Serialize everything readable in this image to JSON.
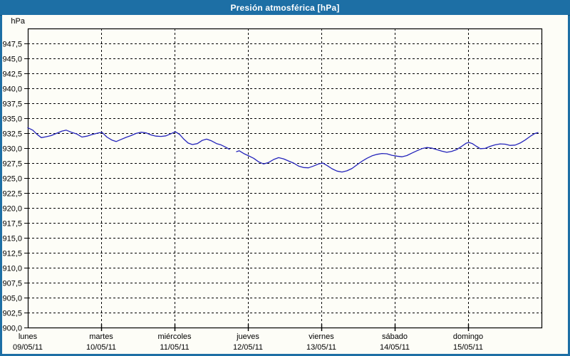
{
  "window": {
    "title": "Presión atmosférica [hPa]"
  },
  "colors": {
    "titlebar": "#1d6fa5",
    "frame_border": "#1d6fa5",
    "plot_background": "#fdfdf7",
    "axis_and_grid": "#000000",
    "line": "#2424bb",
    "title_text": "#ffffff"
  },
  "chart_data": {
    "type": "line",
    "title": "Presión atmosférica [hPa]",
    "unit_label": "hPa",
    "ylabel": "hPa",
    "ylim": [
      900,
      950
    ],
    "y_tick_step": 2.5,
    "grid": "dashed",
    "legend": "none",
    "y_ticks": [
      {
        "value": 947.5,
        "label": "947,5"
      },
      {
        "value": 945.0,
        "label": "945,0"
      },
      {
        "value": 942.5,
        "label": "942,5"
      },
      {
        "value": 940.0,
        "label": "940,0"
      },
      {
        "value": 937.5,
        "label": "937,5"
      },
      {
        "value": 935.0,
        "label": "935,0"
      },
      {
        "value": 932.5,
        "label": "932,5"
      },
      {
        "value": 930.0,
        "label": "930,0"
      },
      {
        "value": 927.5,
        "label": "927,5"
      },
      {
        "value": 925.0,
        "label": "925,0"
      },
      {
        "value": 922.5,
        "label": "922,5"
      },
      {
        "value": 920.0,
        "label": "920,0"
      },
      {
        "value": 917.5,
        "label": "917,5"
      },
      {
        "value": 915.0,
        "label": "915,0"
      },
      {
        "value": 912.5,
        "label": "912,5"
      },
      {
        "value": 910.0,
        "label": "910,0"
      },
      {
        "value": 907.5,
        "label": "907,5"
      },
      {
        "value": 905.0,
        "label": "905,0"
      },
      {
        "value": 902.5,
        "label": "902,5"
      },
      {
        "value": 900.0,
        "label": "900,0"
      }
    ],
    "xlim_days": [
      0,
      7
    ],
    "x_categories": [
      {
        "day": "lunes",
        "date": "09/05/11"
      },
      {
        "day": "martes",
        "date": "10/05/11"
      },
      {
        "day": "miércoles",
        "date": "11/05/11"
      },
      {
        "day": "jueves",
        "date": "12/05/11"
      },
      {
        "day": "viernes",
        "date": "13/05/11"
      },
      {
        "day": "sábado",
        "date": "14/05/11"
      },
      {
        "day": "domingo",
        "date": "15/05/11"
      }
    ],
    "series": [
      {
        "name": "Presión atmosférica",
        "color": "#2424bb",
        "segments": [
          [
            [
              0.0,
              933.4
            ],
            [
              0.068,
              933.0
            ],
            [
              0.126,
              932.3
            ],
            [
              0.184,
              931.75
            ],
            [
              0.252,
              931.9
            ],
            [
              0.32,
              932.1
            ],
            [
              0.398,
              932.5
            ],
            [
              0.466,
              932.85
            ],
            [
              0.524,
              933.0
            ],
            [
              0.592,
              932.65
            ],
            [
              0.67,
              932.35
            ],
            [
              0.738,
              931.85
            ],
            [
              0.806,
              932.0
            ],
            [
              0.883,
              932.3
            ],
            [
              0.951,
              932.5
            ],
            [
              1.01,
              932.65
            ],
            [
              1.078,
              931.85
            ],
            [
              1.146,
              931.35
            ],
            [
              1.204,
              931.1
            ],
            [
              1.272,
              931.45
            ],
            [
              1.34,
              931.8
            ],
            [
              1.408,
              932.1
            ],
            [
              1.476,
              932.45
            ],
            [
              1.544,
              932.65
            ],
            [
              1.612,
              932.55
            ],
            [
              1.68,
              932.2
            ],
            [
              1.748,
              932.0
            ],
            [
              1.816,
              931.95
            ],
            [
              1.883,
              932.05
            ],
            [
              1.951,
              932.4
            ],
            [
              2.01,
              932.75
            ],
            [
              2.068,
              932.3
            ],
            [
              2.126,
              931.5
            ],
            [
              2.184,
              930.85
            ],
            [
              2.243,
              930.6
            ],
            [
              2.311,
              930.75
            ],
            [
              2.379,
              931.3
            ],
            [
              2.437,
              931.5
            ],
            [
              2.505,
              931.2
            ],
            [
              2.573,
              930.75
            ],
            [
              2.631,
              930.55
            ],
            [
              2.689,
              930.2
            ],
            [
              2.748,
              929.8
            ]
          ],
          [
            [
              2.845,
              929.4
            ],
            [
              2.883,
              929.55
            ],
            [
              2.942,
              929.1
            ],
            [
              3.01,
              928.7
            ],
            [
              3.078,
              928.3
            ],
            [
              3.146,
              927.7
            ],
            [
              3.214,
              927.35
            ],
            [
              3.282,
              927.6
            ],
            [
              3.35,
              928.1
            ],
            [
              3.417,
              928.4
            ],
            [
              3.485,
              928.2
            ],
            [
              3.553,
              927.85
            ],
            [
              3.621,
              927.5
            ],
            [
              3.689,
              927.0
            ],
            [
              3.757,
              926.75
            ],
            [
              3.825,
              926.7
            ],
            [
              3.893,
              927.0
            ],
            [
              3.961,
              927.35
            ],
            [
              4.019,
              927.5
            ],
            [
              4.078,
              927.1
            ],
            [
              4.146,
              926.55
            ],
            [
              4.214,
              926.15
            ],
            [
              4.282,
              926.0
            ],
            [
              4.35,
              926.2
            ],
            [
              4.417,
              926.6
            ],
            [
              4.485,
              927.2
            ],
            [
              4.553,
              927.8
            ],
            [
              4.621,
              928.3
            ],
            [
              4.689,
              928.7
            ],
            [
              4.757,
              928.95
            ],
            [
              4.825,
              929.1
            ],
            [
              4.893,
              929.05
            ],
            [
              4.961,
              928.8
            ],
            [
              5.029,
              928.65
            ],
            [
              5.097,
              928.55
            ],
            [
              5.165,
              928.75
            ],
            [
              5.233,
              929.15
            ],
            [
              5.301,
              929.55
            ],
            [
              5.369,
              929.9
            ],
            [
              5.437,
              930.1
            ],
            [
              5.505,
              930.0
            ],
            [
              5.573,
              929.75
            ],
            [
              5.641,
              929.5
            ],
            [
              5.709,
              929.3
            ],
            [
              5.777,
              929.45
            ],
            [
              5.845,
              929.75
            ],
            [
              5.913,
              930.3
            ],
            [
              5.971,
              930.8
            ],
            [
              6.01,
              930.95
            ],
            [
              6.058,
              930.75
            ],
            [
              6.107,
              930.35
            ],
            [
              6.165,
              929.9
            ],
            [
              6.233,
              929.95
            ],
            [
              6.301,
              930.3
            ],
            [
              6.369,
              930.55
            ],
            [
              6.437,
              930.7
            ],
            [
              6.505,
              930.65
            ],
            [
              6.573,
              930.45
            ],
            [
              6.641,
              930.5
            ],
            [
              6.709,
              930.85
            ],
            [
              6.777,
              931.35
            ],
            [
              6.845,
              931.95
            ],
            [
              6.903,
              932.4
            ],
            [
              6.951,
              932.6
            ]
          ]
        ]
      }
    ]
  }
}
